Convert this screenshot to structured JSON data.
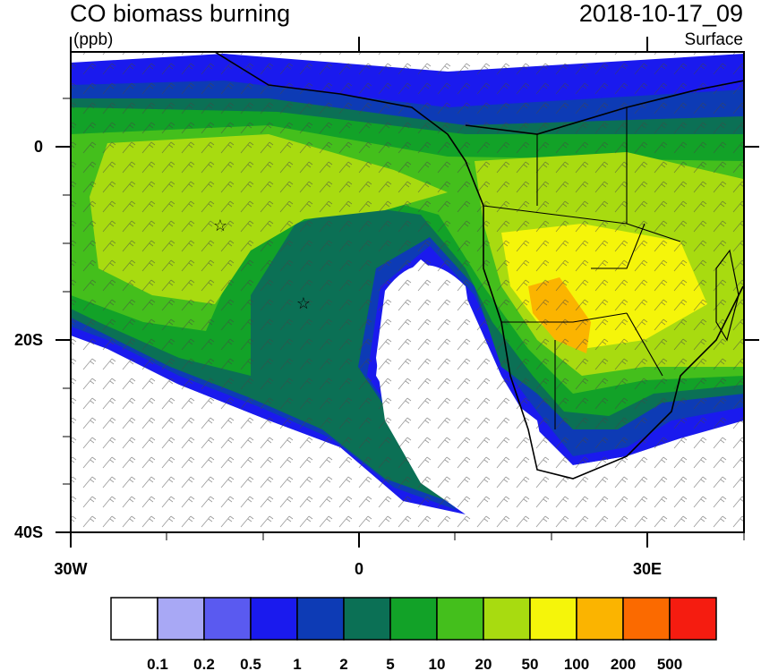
{
  "title": "CO biomass burning",
  "timestamp": "2018-10-17_09",
  "units": "(ppb)",
  "level": "Surface",
  "y_ticks": [
    "0",
    "20S",
    "40S"
  ],
  "x_ticks": [
    "30W",
    "0",
    "30E"
  ],
  "colorbar": {
    "labels": [
      "0.1",
      "0.2",
      "0.5",
      "1",
      "2",
      "5",
      "10",
      "20",
      "50",
      "100",
      "200",
      "500"
    ],
    "colors": [
      "#ffffff",
      "#a8a8f5",
      "#5a5af0",
      "#1a1aee",
      "#0d3bb5",
      "#0b7055",
      "#12a228",
      "#44bf1c",
      "#a8db10",
      "#f5f50a",
      "#fbb400",
      "#fb6a00",
      "#f51c10"
    ]
  },
  "legend_palette": {
    "ocean": "#ffffff",
    "land_outline": "#000000"
  }
}
